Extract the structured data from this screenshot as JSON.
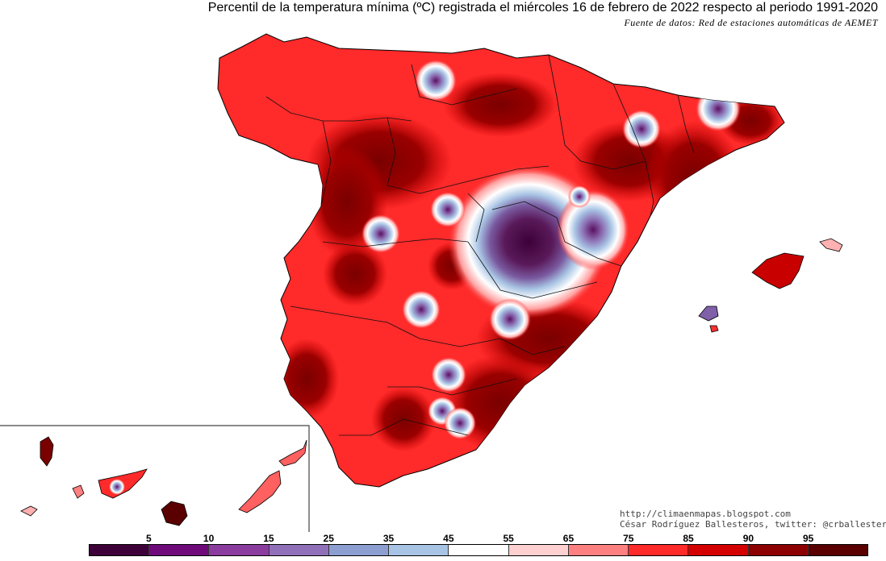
{
  "header": {
    "title": "Percentil de la temperatura mínima (ºC) registrada el miércoles 16 de febrero de 2022 respecto al periodo 1991-2020",
    "source": "Fuente de datos: Red de estaciones automáticas de AEMET"
  },
  "credits": {
    "url": "http://climaenmapas.blogspot.com",
    "author": "César Rodríguez Ballesteros, twitter: @crballesteros"
  },
  "legend": {
    "ticks": [
      "5",
      "10",
      "15",
      "25",
      "35",
      "45",
      "55",
      "65",
      "75",
      "85",
      "90",
      "95"
    ],
    "colors": [
      "#3d0038",
      "#6e0a7a",
      "#8a3d9e",
      "#9070b8",
      "#8c9fd0",
      "#a8c4e4",
      "#ffffff",
      "#ffd0d0",
      "#ff8080",
      "#ff2a2a",
      "#d40000",
      "#8c0000",
      "#5a0000"
    ]
  }
}
